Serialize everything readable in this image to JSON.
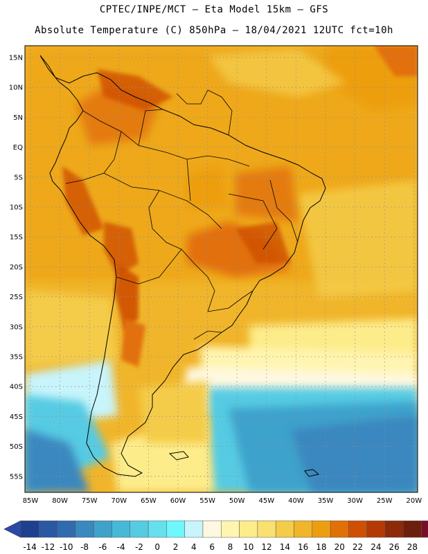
{
  "header": {
    "line1": "CPTEC/INPE/MCT –  Eta Model 15km – GFS",
    "line2": "Absolute Temperature (C) 850hPa – 18/04/2021 12UTC fct=10h"
  },
  "map": {
    "lat_labels": [
      "15N",
      "10N",
      "5N",
      "EQ",
      "5S",
      "10S",
      "15S",
      "20S",
      "25S",
      "30S",
      "35S",
      "40S",
      "45S",
      "50S",
      "55S"
    ],
    "lon_labels": [
      "85W",
      "80W",
      "75W",
      "70W",
      "65W",
      "60W",
      "55W",
      "50W",
      "45W",
      "40W",
      "35W",
      "30W",
      "25W",
      "20W"
    ]
  },
  "colorbar": {
    "labels": [
      "-14",
      "-12",
      "-10",
      "-8",
      "-6",
      "-4",
      "-2",
      "0",
      "2",
      "4",
      "6",
      "8",
      "10",
      "12",
      "14",
      "16",
      "18",
      "20",
      "22",
      "24",
      "26",
      "28"
    ],
    "colors": [
      "#1f3f8f",
      "#2a58a3",
      "#2f6cae",
      "#3b87bf",
      "#3ea2cc",
      "#46b9d9",
      "#56cbe3",
      "#67e0ee",
      "#6ef7fd",
      "#c8f4fb",
      "#fff8e0",
      "#fff5b0",
      "#fdec8a",
      "#f9e070",
      "#f4cc4a",
      "#f0b52a",
      "#ed9e10",
      "#e27008",
      "#cf5004",
      "#b43a05",
      "#8c2a0a",
      "#6e1f0c",
      "#7a0c2a"
    ],
    "under_color": "#2a4aa8",
    "over_color": "#8c0a3c"
  }
}
